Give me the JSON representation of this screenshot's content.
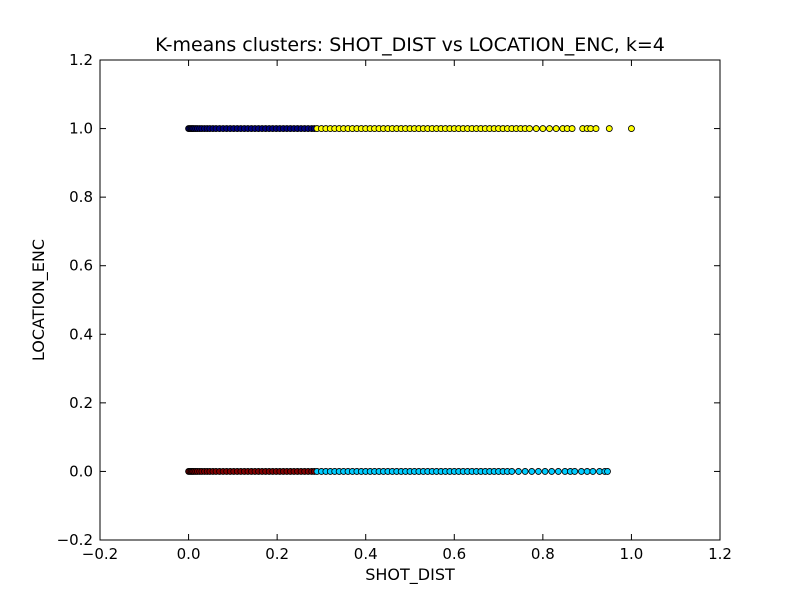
{
  "chart_data": {
    "type": "scatter",
    "title": "K-means clusters: SHOT_DIST vs LOCATION_ENC, k=4",
    "xlabel": "SHOT_DIST",
    "ylabel": "LOCATION_ENC",
    "xlim": [
      -0.2,
      1.2
    ],
    "ylim": [
      -0.2,
      1.2
    ],
    "xticks": [
      -0.2,
      0.0,
      0.2,
      0.4,
      0.6,
      0.8,
      1.0,
      1.2
    ],
    "yticks": [
      -0.2,
      0.0,
      0.2,
      0.4,
      0.6,
      0.8,
      1.0,
      1.2
    ],
    "xtick_labels": [
      "−0.2",
      "0.0",
      "0.2",
      "0.4",
      "0.6",
      "0.8",
      "1.0",
      "1.2"
    ],
    "ytick_labels": [
      "−0.2",
      "0.0",
      "0.2",
      "0.4",
      "0.6",
      "0.8",
      "1.0",
      "1.2"
    ],
    "grid": false,
    "legend": "none",
    "series": [
      {
        "color": "#000080",
        "points": [
          [
            0.0,
            1
          ],
          [
            0.003,
            1
          ],
          [
            0.006,
            1
          ],
          [
            0.009,
            1
          ],
          [
            0.012,
            1
          ],
          [
            0.016,
            1
          ],
          [
            0.02,
            1
          ],
          [
            0.025,
            1
          ],
          [
            0.03,
            1
          ],
          [
            0.036,
            1
          ],
          [
            0.042,
            1
          ],
          [
            0.048,
            1
          ],
          [
            0.055,
            1
          ],
          [
            0.062,
            1
          ],
          [
            0.07,
            1
          ],
          [
            0.078,
            1
          ],
          [
            0.086,
            1
          ],
          [
            0.094,
            1
          ],
          [
            0.102,
            1
          ],
          [
            0.11,
            1
          ],
          [
            0.118,
            1
          ],
          [
            0.126,
            1
          ],
          [
            0.134,
            1
          ],
          [
            0.142,
            1
          ],
          [
            0.15,
            1
          ],
          [
            0.158,
            1
          ],
          [
            0.166,
            1
          ],
          [
            0.174,
            1
          ],
          [
            0.182,
            1
          ],
          [
            0.19,
            1
          ],
          [
            0.198,
            1
          ],
          [
            0.206,
            1
          ],
          [
            0.214,
            1
          ],
          [
            0.222,
            1
          ],
          [
            0.23,
            1
          ],
          [
            0.238,
            1
          ],
          [
            0.246,
            1
          ],
          [
            0.254,
            1
          ],
          [
            0.262,
            1
          ],
          [
            0.27,
            1
          ],
          [
            0.278,
            1
          ],
          [
            0.284,
            1
          ]
        ]
      },
      {
        "color": "#ffff00",
        "points": [
          [
            0.29,
            1
          ],
          [
            0.3,
            1
          ],
          [
            0.31,
            1
          ],
          [
            0.32,
            1
          ],
          [
            0.33,
            1
          ],
          [
            0.34,
            1
          ],
          [
            0.35,
            1
          ],
          [
            0.36,
            1
          ],
          [
            0.37,
            1
          ],
          [
            0.38,
            1
          ],
          [
            0.39,
            1
          ],
          [
            0.4,
            1
          ],
          [
            0.41,
            1
          ],
          [
            0.42,
            1
          ],
          [
            0.43,
            1
          ],
          [
            0.44,
            1
          ],
          [
            0.45,
            1
          ],
          [
            0.46,
            1
          ],
          [
            0.47,
            1
          ],
          [
            0.48,
            1
          ],
          [
            0.49,
            1
          ],
          [
            0.5,
            1
          ],
          [
            0.51,
            1
          ],
          [
            0.52,
            1
          ],
          [
            0.53,
            1
          ],
          [
            0.54,
            1
          ],
          [
            0.55,
            1
          ],
          [
            0.56,
            1
          ],
          [
            0.57,
            1
          ],
          [
            0.58,
            1
          ],
          [
            0.59,
            1
          ],
          [
            0.6,
            1
          ],
          [
            0.61,
            1
          ],
          [
            0.62,
            1
          ],
          [
            0.63,
            1
          ],
          [
            0.64,
            1
          ],
          [
            0.65,
            1
          ],
          [
            0.66,
            1
          ],
          [
            0.67,
            1
          ],
          [
            0.68,
            1
          ],
          [
            0.69,
            1
          ],
          [
            0.7,
            1
          ],
          [
            0.71,
            1
          ],
          [
            0.72,
            1
          ],
          [
            0.73,
            1
          ],
          [
            0.74,
            1
          ],
          [
            0.75,
            1
          ],
          [
            0.76,
            1
          ],
          [
            0.77,
            1
          ],
          [
            0.785,
            1
          ],
          [
            0.8,
            1
          ],
          [
            0.815,
            1
          ],
          [
            0.83,
            1
          ],
          [
            0.845,
            1
          ],
          [
            0.855,
            1
          ],
          [
            0.866,
            1
          ],
          [
            0.89,
            1
          ],
          [
            0.9,
            1
          ],
          [
            0.908,
            1
          ],
          [
            0.92,
            1
          ],
          [
            0.95,
            1
          ],
          [
            1.0,
            1
          ]
        ]
      },
      {
        "color": "#800000",
        "points": [
          [
            0.0,
            0
          ],
          [
            0.003,
            0
          ],
          [
            0.006,
            0
          ],
          [
            0.009,
            0
          ],
          [
            0.012,
            0
          ],
          [
            0.016,
            0
          ],
          [
            0.02,
            0
          ],
          [
            0.025,
            0
          ],
          [
            0.03,
            0
          ],
          [
            0.036,
            0
          ],
          [
            0.042,
            0
          ],
          [
            0.048,
            0
          ],
          [
            0.055,
            0
          ],
          [
            0.062,
            0
          ],
          [
            0.07,
            0
          ],
          [
            0.078,
            0
          ],
          [
            0.086,
            0
          ],
          [
            0.094,
            0
          ],
          [
            0.102,
            0
          ],
          [
            0.11,
            0
          ],
          [
            0.118,
            0
          ],
          [
            0.126,
            0
          ],
          [
            0.134,
            0
          ],
          [
            0.142,
            0
          ],
          [
            0.15,
            0
          ],
          [
            0.158,
            0
          ],
          [
            0.166,
            0
          ],
          [
            0.174,
            0
          ],
          [
            0.182,
            0
          ],
          [
            0.19,
            0
          ],
          [
            0.198,
            0
          ],
          [
            0.206,
            0
          ],
          [
            0.214,
            0
          ],
          [
            0.222,
            0
          ],
          [
            0.23,
            0
          ],
          [
            0.238,
            0
          ],
          [
            0.246,
            0
          ],
          [
            0.254,
            0
          ],
          [
            0.262,
            0
          ],
          [
            0.27,
            0
          ],
          [
            0.278,
            0
          ],
          [
            0.284,
            0
          ]
        ]
      },
      {
        "color": "#00ccff",
        "points": [
          [
            0.29,
            0
          ],
          [
            0.3,
            0
          ],
          [
            0.31,
            0
          ],
          [
            0.32,
            0
          ],
          [
            0.33,
            0
          ],
          [
            0.34,
            0
          ],
          [
            0.35,
            0
          ],
          [
            0.36,
            0
          ],
          [
            0.37,
            0
          ],
          [
            0.38,
            0
          ],
          [
            0.39,
            0
          ],
          [
            0.4,
            0
          ],
          [
            0.41,
            0
          ],
          [
            0.42,
            0
          ],
          [
            0.43,
            0
          ],
          [
            0.44,
            0
          ],
          [
            0.45,
            0
          ],
          [
            0.46,
            0
          ],
          [
            0.47,
            0
          ],
          [
            0.48,
            0
          ],
          [
            0.49,
            0
          ],
          [
            0.5,
            0
          ],
          [
            0.51,
            0
          ],
          [
            0.52,
            0
          ],
          [
            0.53,
            0
          ],
          [
            0.54,
            0
          ],
          [
            0.55,
            0
          ],
          [
            0.56,
            0
          ],
          [
            0.57,
            0
          ],
          [
            0.58,
            0
          ],
          [
            0.59,
            0
          ],
          [
            0.6,
            0
          ],
          [
            0.61,
            0
          ],
          [
            0.62,
            0
          ],
          [
            0.63,
            0
          ],
          [
            0.64,
            0
          ],
          [
            0.65,
            0
          ],
          [
            0.66,
            0
          ],
          [
            0.67,
            0
          ],
          [
            0.68,
            0
          ],
          [
            0.69,
            0
          ],
          [
            0.7,
            0
          ],
          [
            0.71,
            0
          ],
          [
            0.72,
            0
          ],
          [
            0.73,
            0
          ],
          [
            0.745,
            0
          ],
          [
            0.76,
            0
          ],
          [
            0.775,
            0
          ],
          [
            0.79,
            0
          ],
          [
            0.805,
            0
          ],
          [
            0.82,
            0
          ],
          [
            0.835,
            0
          ],
          [
            0.85,
            0
          ],
          [
            0.862,
            0
          ],
          [
            0.872,
            0
          ],
          [
            0.887,
            0
          ],
          [
            0.9,
            0
          ],
          [
            0.913,
            0
          ],
          [
            0.928,
            0
          ],
          [
            0.94,
            0
          ],
          [
            0.946,
            0
          ]
        ]
      }
    ]
  }
}
